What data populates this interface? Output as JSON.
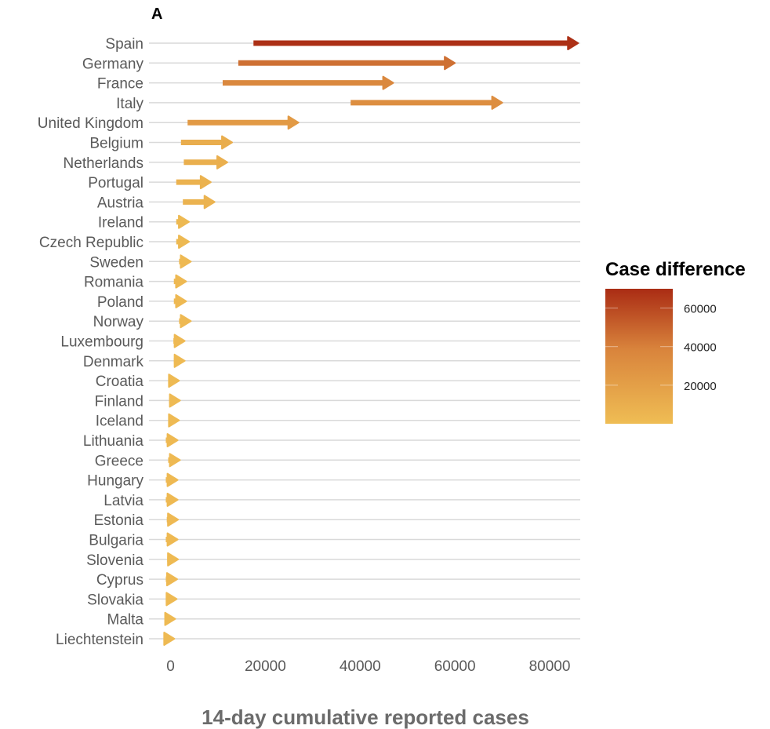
{
  "chart_data": {
    "type": "arrow-range",
    "panel_label": "A",
    "xlabel": "14-day cumulative reported cases",
    "ylabel": "",
    "xlim": [
      -5000,
      90000
    ],
    "xticks": [
      0,
      20000,
      40000,
      60000,
      80000
    ],
    "xtick_labels": [
      "0",
      "20000",
      "40000",
      "60000",
      "80000"
    ],
    "grid": "horizontal",
    "categories": [
      "Spain",
      "Germany",
      "France",
      "Italy",
      "United Kingdom",
      "Belgium",
      "Netherlands",
      "Portugal",
      "Austria",
      "Ireland",
      "Czech Republic",
      "Sweden",
      "Romania",
      "Poland",
      "Norway",
      "Luxembourg",
      "Denmark",
      "Croatia",
      "Finland",
      "Iceland",
      "Lithuania",
      "Greece",
      "Hungary",
      "Latvia",
      "Estonia",
      "Bulgaria",
      "Slovenia",
      "Cyprus",
      "Slovakia",
      "Malta",
      "Liechtenstein"
    ],
    "start": [
      17500,
      14300,
      11000,
      38000,
      3600,
      2200,
      2800,
      1200,
      2600,
      1200,
      1200,
      1800,
      700,
      700,
      1800,
      600,
      700,
      -500,
      -300,
      -400,
      -1000,
      -500,
      -1000,
      -1000,
      -800,
      -1000,
      -700,
      -1000,
      -1000,
      -1200,
      -1200
    ],
    "end": [
      86000,
      60000,
      47000,
      70000,
      27000,
      13000,
      12000,
      8500,
      9300,
      3900,
      3900,
      4300,
      3300,
      3300,
      4300,
      3000,
      3000,
      1800,
      2000,
      1800,
      1500,
      2000,
      1500,
      1500,
      1600,
      1500,
      1600,
      1400,
      1300,
      1000,
      800
    ],
    "legend": {
      "title": "Case difference",
      "type": "colorbar",
      "placement": "right",
      "range": [
        0,
        70000
      ],
      "ticks": [
        20000,
        40000,
        60000
      ],
      "tick_labels": [
        "20000",
        "40000",
        "60000"
      ],
      "color_low": "#efbd54",
      "color_mid": "#d9843c",
      "color_high": "#aa2c14"
    }
  }
}
